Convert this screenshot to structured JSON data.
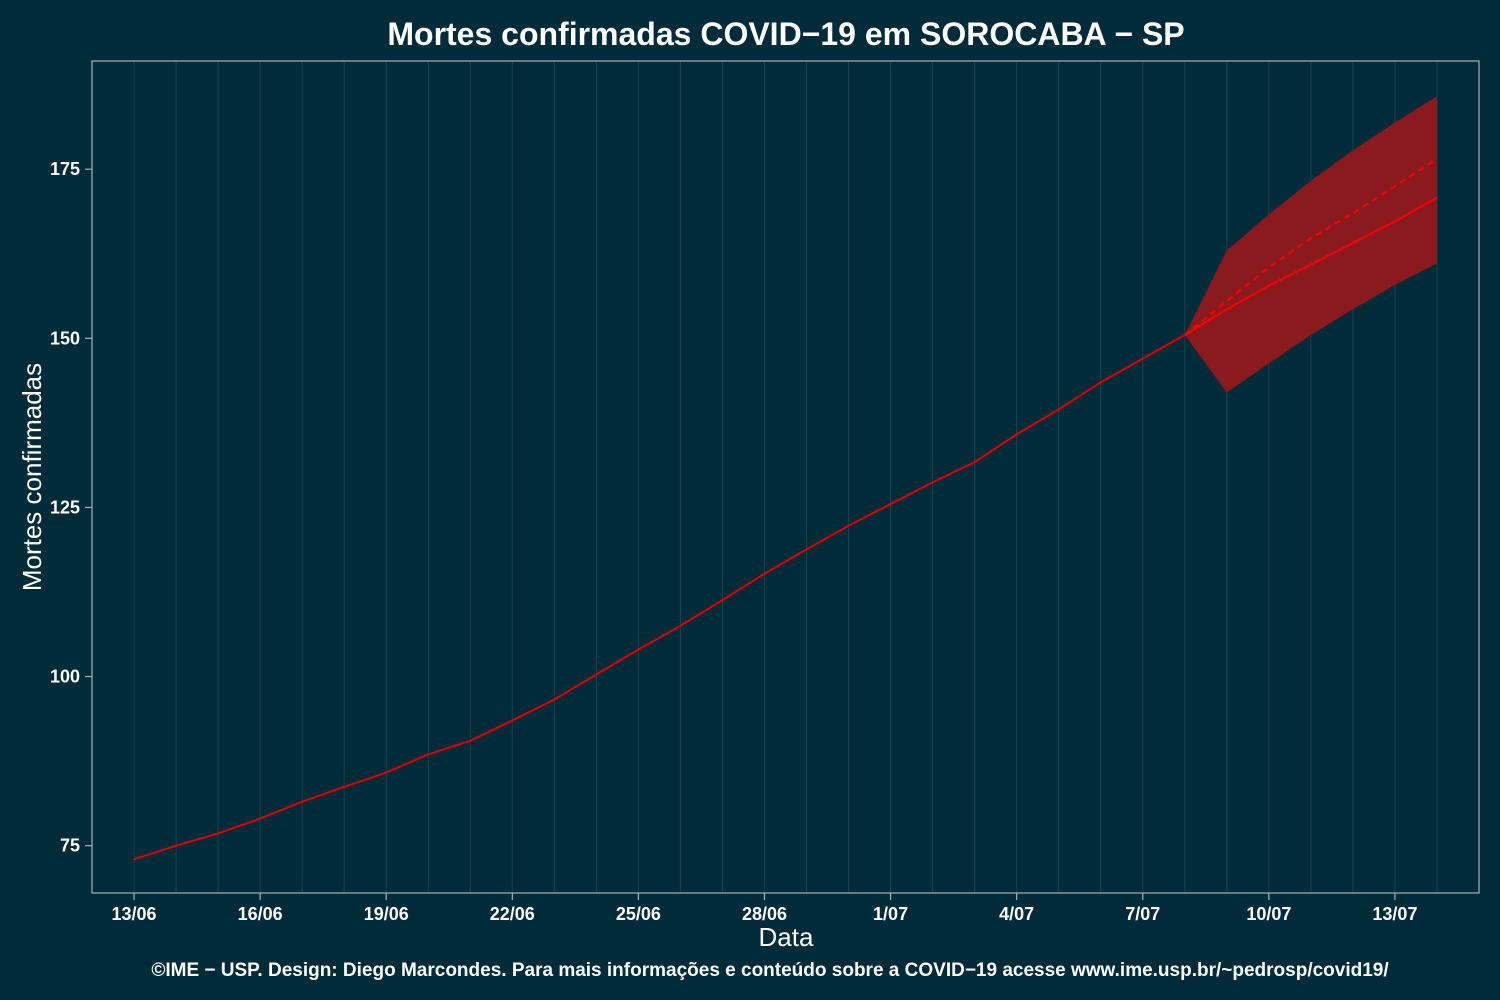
{
  "chart_data": {
    "type": "line",
    "title": "Mortes confirmadas COVID−19 em SOROCABA − SP",
    "xlabel": "Data",
    "ylabel": "Mortes confirmadas",
    "caption": "©IME − USP. Design: Diego Marcondes. Para mais informações e conteúdo sobre a COVID−19 acesse www.ime.usp.br/~pedrosp/covid19/",
    "x_dates": [
      "2020-06-13",
      "2020-06-14",
      "2020-06-15",
      "2020-06-16",
      "2020-06-17",
      "2020-06-18",
      "2020-06-19",
      "2020-06-20",
      "2020-06-21",
      "2020-06-22",
      "2020-06-23",
      "2020-06-24",
      "2020-06-25",
      "2020-06-26",
      "2020-06-27",
      "2020-06-28",
      "2020-06-29",
      "2020-06-30",
      "2020-07-01",
      "2020-07-02",
      "2020-07-03",
      "2020-07-04",
      "2020-07-05",
      "2020-07-06",
      "2020-07-07",
      "2020-07-08",
      "2020-07-09",
      "2020-07-10",
      "2020-07-11",
      "2020-07-12",
      "2020-07-13",
      "2020-07-14"
    ],
    "xlim": [
      "2020-06-12",
      "2020-07-15"
    ],
    "ylim": [
      68,
      191
    ],
    "x_ticks": [
      {
        "date": "2020-06-13",
        "label": "13/06"
      },
      {
        "date": "2020-06-16",
        "label": "16/06"
      },
      {
        "date": "2020-06-19",
        "label": "19/06"
      },
      {
        "date": "2020-06-22",
        "label": "22/06"
      },
      {
        "date": "2020-06-25",
        "label": "25/06"
      },
      {
        "date": "2020-06-28",
        "label": "28/06"
      },
      {
        "date": "2020-07-01",
        "label": "1/07"
      },
      {
        "date": "2020-07-04",
        "label": "4/07"
      },
      {
        "date": "2020-07-07",
        "label": "7/07"
      },
      {
        "date": "2020-07-10",
        "label": "10/07"
      },
      {
        "date": "2020-07-13",
        "label": "13/07"
      }
    ],
    "y_ticks": [
      75,
      100,
      125,
      150,
      175
    ],
    "grid": true,
    "series": [
      {
        "role": "observed",
        "style": "solid",
        "color": "#e00000",
        "x": [
          "2020-06-13",
          "2020-06-14",
          "2020-06-15",
          "2020-06-16",
          "2020-06-17",
          "2020-06-18",
          "2020-06-19",
          "2020-06-20",
          "2020-06-21",
          "2020-06-22",
          "2020-06-23",
          "2020-06-24",
          "2020-06-25",
          "2020-06-26",
          "2020-06-27",
          "2020-06-28",
          "2020-06-29",
          "2020-06-30",
          "2020-07-01",
          "2020-07-02",
          "2020-07-03",
          "2020-07-04",
          "2020-07-05",
          "2020-07-06",
          "2020-07-07",
          "2020-07-08"
        ],
        "values": [
          73.0,
          75.0,
          76.8,
          79.0,
          81.5,
          83.7,
          85.8,
          88.5,
          90.5,
          93.5,
          96.6,
          100.3,
          104.0,
          107.5,
          111.3,
          115.2,
          118.8,
          122.3,
          125.5,
          128.7,
          131.7,
          135.8,
          139.5,
          143.5,
          147.0,
          150.5
        ]
      },
      {
        "role": "forecast",
        "style": "solid",
        "color": "#ff0000",
        "x": [
          "2020-07-08",
          "2020-07-09",
          "2020-07-10",
          "2020-07-11",
          "2020-07-12",
          "2020-07-13",
          "2020-07-14"
        ],
        "values": [
          150.5,
          154.3,
          157.8,
          160.9,
          164.1,
          167.3,
          170.8
        ]
      },
      {
        "role": "forecast-upper-trend",
        "style": "dashed",
        "color": "#ff0000",
        "x": [
          "2020-07-08",
          "2020-07-09",
          "2020-07-10",
          "2020-07-11",
          "2020-07-12",
          "2020-07-13",
          "2020-07-14"
        ],
        "values": [
          150.5,
          155.5,
          160.5,
          164.8,
          168.5,
          172.5,
          176.5
        ]
      }
    ],
    "band": {
      "color": "#8b1a1e",
      "x": [
        "2020-07-08",
        "2020-07-09",
        "2020-07-10",
        "2020-07-11",
        "2020-07-12",
        "2020-07-13",
        "2020-07-14"
      ],
      "upper": [
        150.5,
        163.0,
        168.3,
        173.3,
        177.8,
        181.9,
        185.8
      ],
      "lower": [
        150.5,
        142.0,
        146.3,
        150.5,
        154.3,
        157.9,
        161.1
      ]
    }
  }
}
